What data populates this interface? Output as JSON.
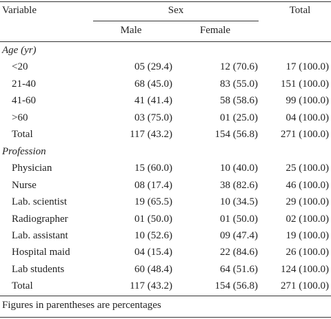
{
  "header": {
    "variable": "Variable",
    "sex": "Sex",
    "total": "Total",
    "male": "Male",
    "female": "Female"
  },
  "sections": [
    {
      "title": "Age (yr)",
      "rows": [
        [
          "<20",
          "05 (29.4)",
          "12 (70.6)",
          "17 (100.0)"
        ],
        [
          "21-40",
          "68 (45.0)",
          "83 (55.0)",
          "151 (100.0)"
        ],
        [
          "41-60",
          "41 (41.4)",
          "58 (58.6)",
          "99 (100.0)"
        ],
        [
          ">60",
          "03 (75.0)",
          "01 (25.0)",
          "04 (100.0)"
        ],
        [
          "Total",
          "117 (43.2)",
          "154 (56.8)",
          "271 (100.0)"
        ]
      ]
    },
    {
      "title": "Profession",
      "rows": [
        [
          "Physician",
          "15 (60.0)",
          "10 (40.0)",
          "25 (100.0)"
        ],
        [
          "Nurse",
          "08 (17.4)",
          "38 (82.6)",
          "46 (100.0)"
        ],
        [
          "Lab. scientist",
          "19 (65.5)",
          "10 (34.5)",
          "29 (100.0)"
        ],
        [
          "Radiographer",
          "01 (50.0)",
          "01 (50.0)",
          "02 (100.0)"
        ],
        [
          "Lab. assistant",
          "10 (52.6)",
          "09 (47.4)",
          "19 (100.0)"
        ],
        [
          "Hospital maid",
          "04 (15.4)",
          "22 (84.6)",
          "26 (100.0)"
        ],
        [
          "Lab students",
          "60 (48.4)",
          "64 (51.6)",
          "124 (100.0)"
        ],
        [
          "Total",
          "117 (43.2)",
          "154 (56.8)",
          "271 (100.0)"
        ]
      ]
    }
  ],
  "footnote": "Figures in parentheses are percentages"
}
